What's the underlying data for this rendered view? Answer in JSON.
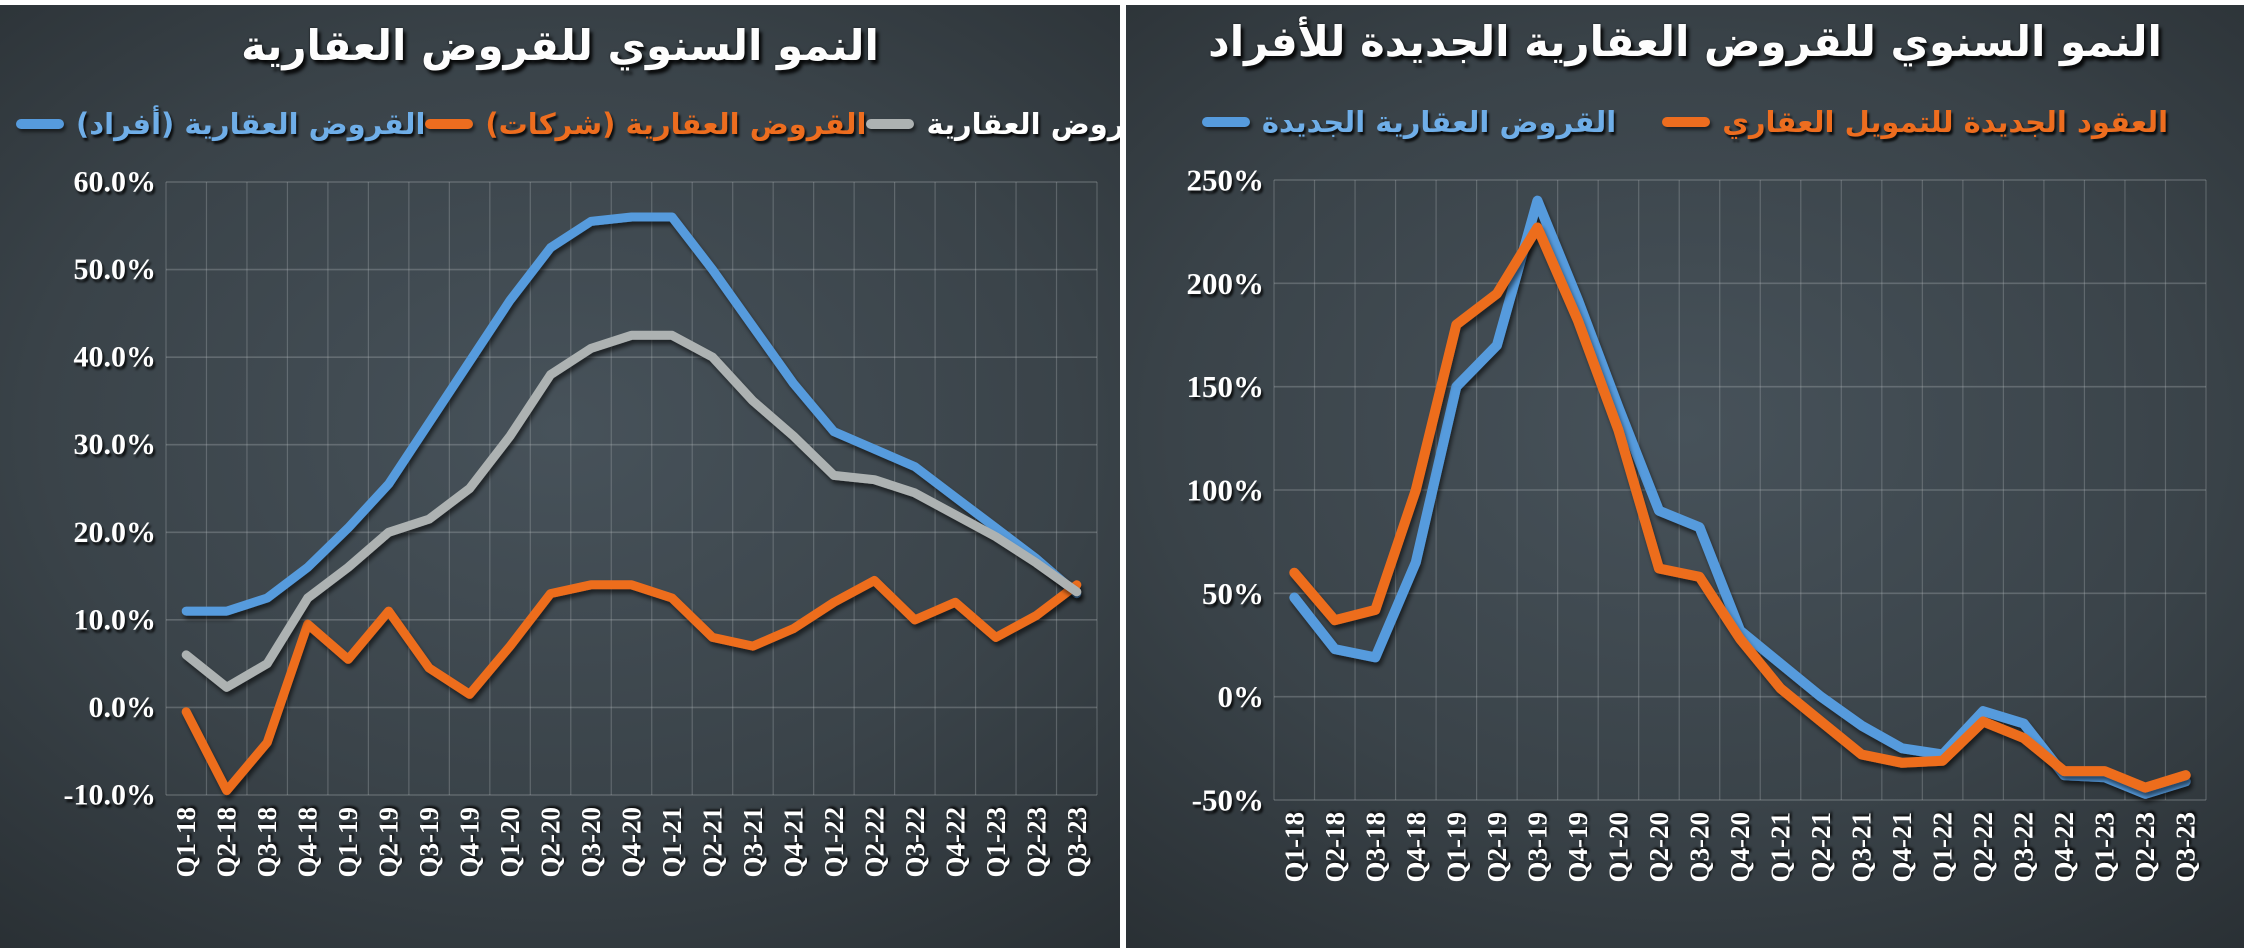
{
  "chart_data": [
    {
      "type": "line",
      "title": "النمو السنوي للقروض العقارية",
      "categories": [
        "Q1-18",
        "Q2-18",
        "Q3-18",
        "Q4-18",
        "Q1-19",
        "Q2-19",
        "Q3-19",
        "Q4-19",
        "Q1-20",
        "Q2-20",
        "Q3-20",
        "Q4-20",
        "Q1-21",
        "Q2-21",
        "Q3-21",
        "Q4-21",
        "Q1-22",
        "Q2-22",
        "Q3-22",
        "Q4-22",
        "Q1-23",
        "Q2-23",
        "Q3-23"
      ],
      "ylim": [
        -10,
        60
      ],
      "ytick_step": 10,
      "yticks": [
        "60.0%",
        "50.0%",
        "40.0%",
        "30.0%",
        "20.0%",
        "10.0%",
        "0.0%",
        "-10.0%"
      ],
      "grid": true,
      "legend_position": "top",
      "series": [
        {
          "name": "القروض العقارية (أفراد)",
          "color": "#569BDD",
          "label_color": "#6FAEE8",
          "values": [
            11,
            11,
            12.5,
            16,
            20.5,
            25.5,
            32.5,
            39.5,
            46.5,
            52.5,
            55.5,
            56,
            56,
            50,
            43.5,
            37,
            31.5,
            29.5,
            27.5,
            24,
            20.5,
            17,
            13
          ]
        },
        {
          "name": "القروض العقارية (شركات)",
          "color": "#ED6D1F",
          "label_color": "#ED6D1F",
          "values": [
            -0.5,
            -9.5,
            -4,
            9.5,
            5.5,
            11,
            4.5,
            1.5,
            7,
            13,
            14,
            14,
            12.5,
            8,
            7,
            9,
            12,
            14.5,
            10,
            12,
            8,
            10.5,
            14
          ]
        },
        {
          "name": "إجمالي القروض العقارية",
          "color": "#ADB2B2",
          "label_color": "#FFFFFF",
          "values": [
            6,
            2.3,
            5,
            12.5,
            16,
            20,
            21.5,
            25,
            31,
            38,
            41,
            42.5,
            42.5,
            40,
            35,
            31,
            26.5,
            26,
            24.5,
            22,
            19.5,
            16.5,
            13.2
          ]
        }
      ]
    },
    {
      "type": "line",
      "title": "النمو السنوي للقروض العقارية الجديدة للأفراد",
      "categories": [
        "Q1-18",
        "Q2-18",
        "Q3-18",
        "Q4-18",
        "Q1-19",
        "Q2-19",
        "Q3-19",
        "Q4-19",
        "Q1-20",
        "Q2-20",
        "Q3-20",
        "Q4-20",
        "Q1-21",
        "Q2-21",
        "Q3-21",
        "Q4-21",
        "Q1-22",
        "Q2-22",
        "Q3-22",
        "Q4-22",
        "Q1-23",
        "Q2-23",
        "Q3-23"
      ],
      "ylim": [
        -50,
        250
      ],
      "ytick_step": 50,
      "yticks": [
        "250%",
        "200%",
        "150%",
        "100%",
        "50%",
        "0%",
        "-50%"
      ],
      "grid": true,
      "legend_position": "top",
      "series": [
        {
          "name": "القروض العقارية الجديدة",
          "color": "#569BDD",
          "label_color": "#6FAEE8",
          "values": [
            48,
            23,
            19,
            65,
            150,
            170,
            240,
            192,
            140,
            90,
            82,
            32,
            16,
            0,
            -14,
            -25,
            -28,
            -7,
            -13,
            -38,
            -39,
            -47,
            -41
          ]
        },
        {
          "name": "العقود الجديدة للتمويل العقاري",
          "color": "#ED6D1F",
          "label_color": "#ED6D1F",
          "values": [
            60,
            37,
            42,
            100,
            180,
            195,
            227,
            182,
            129,
            62,
            58,
            28,
            4,
            -12,
            -28,
            -32,
            -31,
            -12,
            -20,
            -36,
            -36,
            -44,
            -38
          ]
        }
      ]
    }
  ],
  "colors": {
    "individuals_blue": "#569BDD",
    "companies_orange": "#ED6D1F",
    "total_gray": "#ADB2B2",
    "divider_white": "#FFFFFF",
    "grid_line": "#ADB5B8"
  }
}
